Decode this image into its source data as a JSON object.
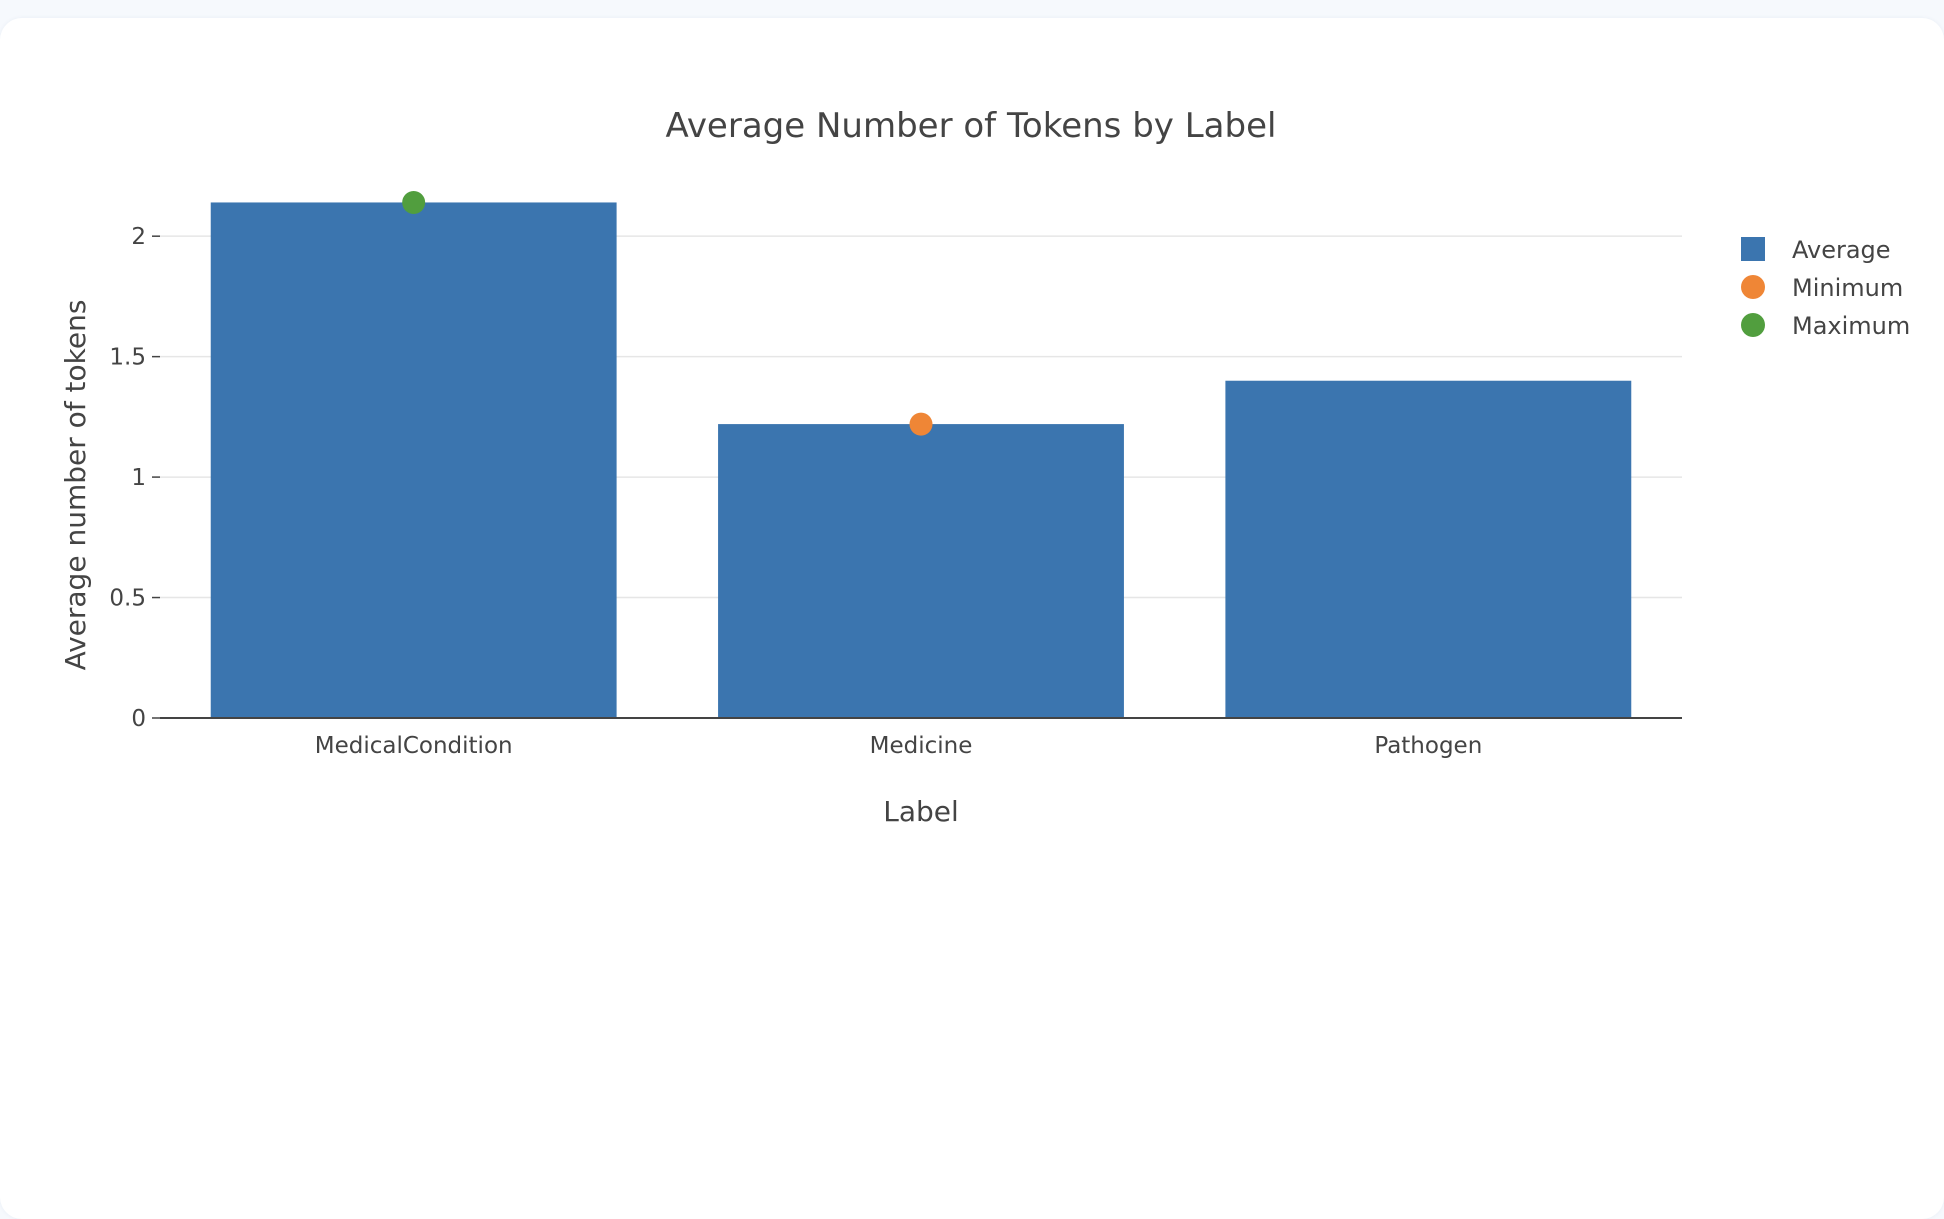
{
  "chart_data": {
    "type": "bar",
    "title": "Average Number of Tokens by Label",
    "xlabel": "Label",
    "ylabel": "Average number of tokens",
    "categories": [
      "MedicalCondition",
      "Medicine",
      "Pathogen"
    ],
    "ylim": [
      0,
      2.2
    ],
    "yticks": [
      0,
      0.5,
      1,
      1.5,
      2
    ],
    "ytick_labels": [
      "0",
      "0.5",
      "1",
      "1.5",
      "2"
    ],
    "grid": true,
    "legend_position": "top-right",
    "series": [
      {
        "name": "Average",
        "kind": "bar",
        "color": "#3b75af",
        "values": [
          2.14,
          1.22,
          1.4
        ]
      },
      {
        "name": "Minimum",
        "kind": "marker",
        "color": "#ef8636",
        "points": [
          {
            "category": "Medicine",
            "value": 1.22
          }
        ]
      },
      {
        "name": "Maximum",
        "kind": "marker",
        "color": "#519e3e",
        "points": [
          {
            "category": "MedicalCondition",
            "value": 2.14
          }
        ]
      }
    ]
  }
}
